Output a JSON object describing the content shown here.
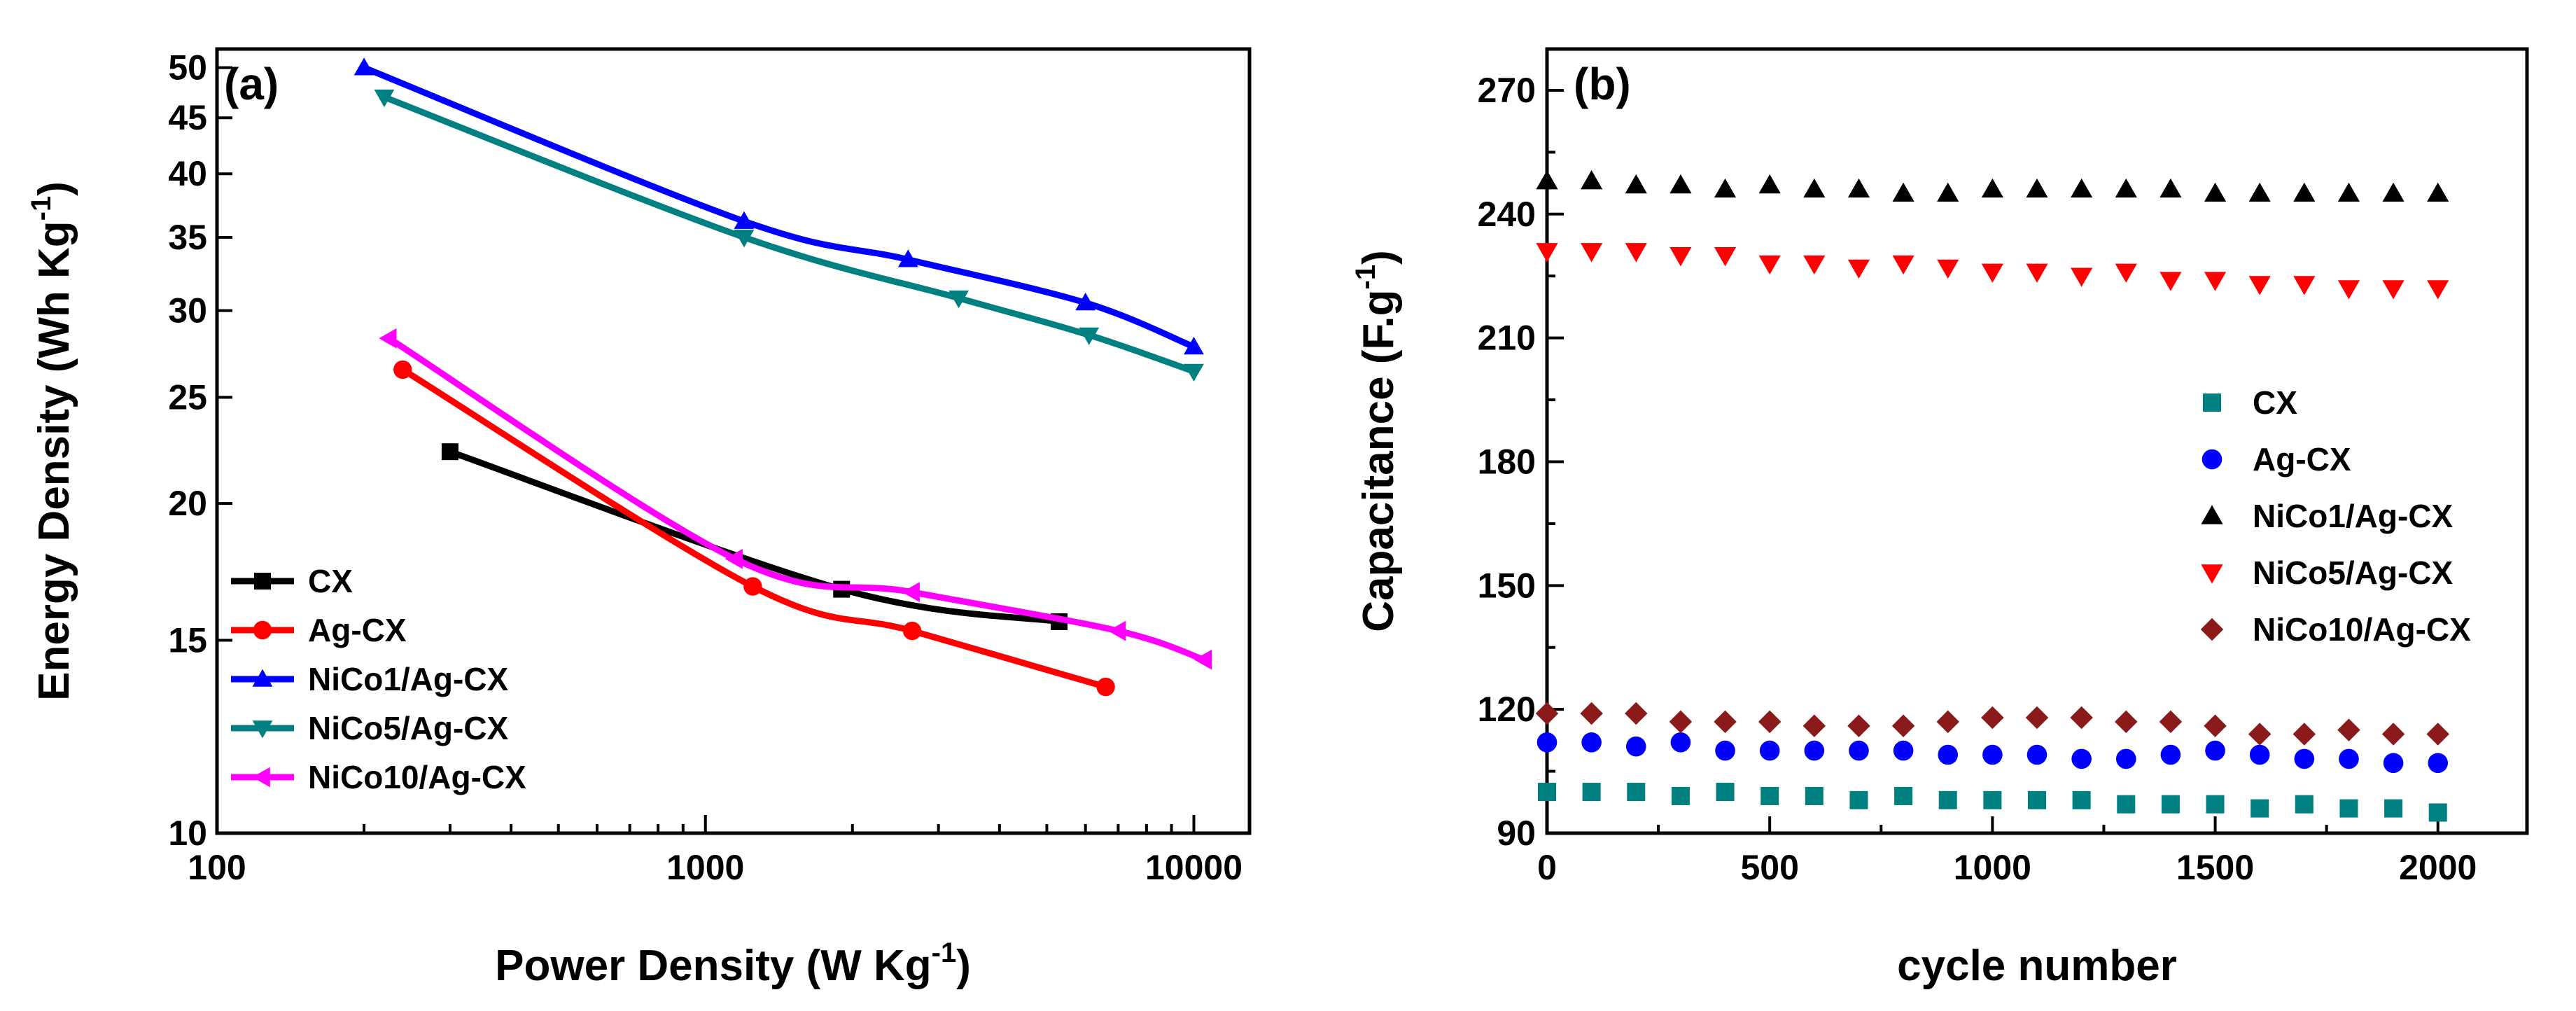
{
  "chart_data": [
    {
      "panel_label": "(a)",
      "type": "line",
      "xscale": "log",
      "yscale": "log",
      "xlabel": "Power Density (W Kg",
      "xlabel_sup": "-1",
      "xlabel_end": ")",
      "ylabel": "Energy Density (Wh Kg",
      "ylabel_sup": "-1",
      "ylabel_end": ")",
      "xlim": [
        100,
        13000
      ],
      "ylim": [
        10,
        52
      ],
      "x_ticks": [
        100,
        1000,
        10000
      ],
      "x_tick_labels": [
        "100",
        "1000",
        "10000"
      ],
      "y_ticks": [
        10,
        15,
        20,
        25,
        30,
        35,
        40,
        45,
        50
      ],
      "y_tick_labels": [
        "10",
        "15",
        "20",
        "25",
        "30",
        "35",
        "40",
        "45",
        "50"
      ],
      "legend_position": "bottom-left",
      "series": [
        {
          "name": "CX",
          "color": "#000000",
          "marker": "square",
          "x": [
            300,
            1900,
            5300
          ],
          "y": [
            22.3,
            16.7,
            15.6
          ]
        },
        {
          "name": "Ag-CX",
          "color": "#ff0000",
          "marker": "circle",
          "x": [
            240,
            1250,
            2650,
            6600
          ],
          "y": [
            26.5,
            16.8,
            15.3,
            13.6
          ]
        },
        {
          "name": "NiCo1/Ag-CX",
          "color": "#0000ff",
          "marker": "triangle-up",
          "x": [
            200,
            1200,
            2600,
            6000,
            10000
          ],
          "y": [
            50,
            36.2,
            33.4,
            30.5,
            27.8
          ]
        },
        {
          "name": "NiCo5/Ag-CX",
          "color": "#008080",
          "marker": "triangle-down",
          "x": [
            220,
            1200,
            3300,
            6100,
            10000
          ],
          "y": [
            47,
            35,
            30.8,
            28.5,
            26.4
          ]
        },
        {
          "name": "NiCo10/Ag-CX",
          "color": "#ff00ff",
          "marker": "triangle-left",
          "x": [
            225,
            1150,
            2650,
            7000,
            10500
          ],
          "y": [
            28.3,
            17.8,
            16.6,
            15.3,
            14.4
          ]
        }
      ]
    },
    {
      "panel_label": "(b)",
      "type": "scatter",
      "xlabel": "cycle number",
      "ylabel": "Capacitance (F.g",
      "ylabel_sup": "-1",
      "ylabel_end": ")",
      "xlim": [
        0,
        2200
      ],
      "ylim": [
        90,
        280
      ],
      "x_ticks": [
        0,
        500,
        1000,
        1500,
        2000
      ],
      "x_tick_labels": [
        "0",
        "500",
        "1000",
        "1500",
        "2000"
      ],
      "y_ticks": [
        90,
        120,
        150,
        180,
        210,
        240,
        270
      ],
      "y_tick_labels": [
        "90",
        "120",
        "150",
        "180",
        "210",
        "240",
        "270"
      ],
      "legend_position": "center-right",
      "x": [
        0,
        100,
        200,
        300,
        400,
        500,
        600,
        700,
        800,
        900,
        1000,
        1100,
        1200,
        1300,
        1400,
        1500,
        1600,
        1700,
        1800,
        1900,
        2000
      ],
      "series": [
        {
          "name": "CX",
          "color": "#008080",
          "marker": "square",
          "values": [
            100,
            100,
            100,
            99,
            100,
            99,
            99,
            98,
            99,
            98,
            98,
            98,
            98,
            97,
            97,
            97,
            96,
            97,
            96,
            96,
            95
          ]
        },
        {
          "name": "Ag-CX",
          "color": "#0000ff",
          "marker": "circle",
          "values": [
            112,
            112,
            111,
            112,
            110,
            110,
            110,
            110,
            110,
            109,
            109,
            109,
            108,
            108,
            109,
            110,
            109,
            108,
            108,
            107,
            107
          ]
        },
        {
          "name": "NiCo1/Ag-CX",
          "color": "#000000",
          "marker": "triangle-up",
          "values": [
            248,
            248,
            247,
            247,
            246,
            247,
            246,
            246,
            245,
            245,
            246,
            246,
            246,
            246,
            246,
            245,
            245,
            245,
            245,
            245,
            245
          ]
        },
        {
          "name": "NiCo5/Ag-CX",
          "color": "#ff0000",
          "marker": "triangle-down",
          "values": [
            231,
            231,
            231,
            230,
            230,
            228,
            228,
            227,
            228,
            227,
            226,
            226,
            225,
            226,
            224,
            224,
            223,
            223,
            222,
            222,
            222
          ]
        },
        {
          "name": "NiCo10/Ag-CX",
          "color": "#8b1a1a",
          "marker": "diamond",
          "values": [
            119,
            119,
            119,
            117,
            117,
            117,
            116,
            116,
            116,
            117,
            118,
            118,
            118,
            117,
            117,
            116,
            114,
            114,
            115,
            114,
            114
          ]
        }
      ]
    }
  ]
}
